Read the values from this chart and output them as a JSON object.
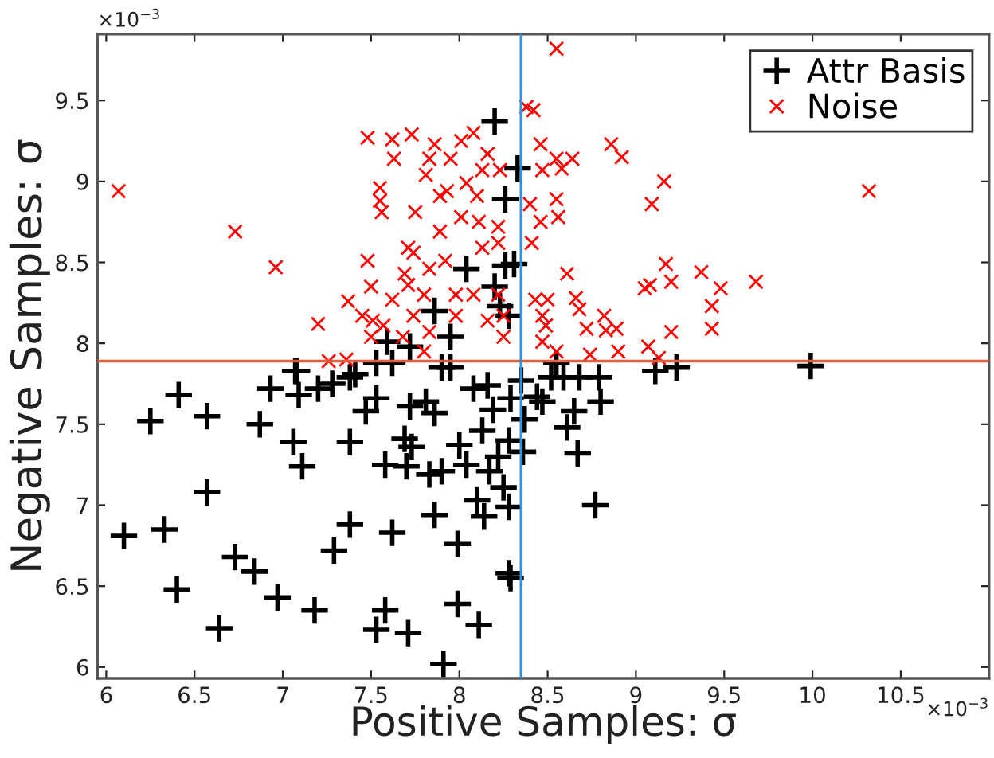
{
  "chart_data": {
    "type": "scatter",
    "xlabel": "Positive Samples: σ",
    "ylabel": "Negative Samples: σ",
    "xlim": [
      5.95,
      11
    ],
    "ylim": [
      5.93,
      9.91
    ],
    "xticks": [
      6,
      6.5,
      7,
      7.5,
      8,
      8.5,
      9,
      9.5,
      10,
      10.5
    ],
    "yticks": [
      6,
      6.5,
      7,
      7.5,
      8,
      8.5,
      9,
      9.5
    ],
    "grid": false,
    "legend": "top right",
    "annotations": [
      "×10$^{−3}$",
      "×10$^{−3}$"
    ],
    "ref_lines": [
      {
        "axis": "y",
        "value": 7.89,
        "color": "#e06040"
      },
      {
        "axis": "x",
        "value": 8.35,
        "color": "#3d8fd1"
      }
    ],
    "series": [
      {
        "name": "Attr Basis",
        "color": "#000000",
        "marker": "plus",
        "x": [
          6.1,
          6.25,
          6.33,
          6.41,
          6.4,
          6.57,
          6.57,
          6.64,
          6.73,
          6.84,
          6.87,
          6.93,
          6.97,
          7.07,
          7.09,
          7.06,
          7.11,
          7.18,
          7.2,
          7.28,
          7.29,
          7.38,
          7.38,
          7.38,
          7.47,
          7.53,
          7.53,
          7.58,
          7.58,
          7.62,
          7.62,
          7.7,
          7.71,
          7.72,
          7.69,
          7.73,
          7.81,
          7.83,
          7.86,
          7.86,
          7.91,
          7.9,
          7.99,
          7.99,
          8.0,
          8.11,
          8.1,
          8.14,
          8.04,
          8.08,
          7.9,
          7.95,
          9.99,
          9.11,
          9.23,
          8.77,
          8.67,
          8.61,
          8.65,
          8.8,
          8.79,
          8.68,
          8.59,
          8.52,
          8.44,
          8.47,
          8.28,
          8.29,
          8.28,
          8.25,
          8.36,
          8.37,
          8.35,
          8.17,
          8.22,
          8.28,
          8.29,
          8.16,
          8.19,
          8.13,
          8.55,
          8.2,
          8.33,
          8.26,
          8.31,
          8.26,
          8.2,
          8.28,
          8.23,
          8.04,
          7.86,
          7.95,
          7.59,
          7.72,
          7.08,
          7.41,
          7.53
        ],
        "values": [
          6.81,
          7.52,
          6.85,
          7.68,
          6.48,
          7.55,
          7.08,
          6.24,
          6.68,
          6.59,
          7.5,
          7.72,
          6.43,
          7.83,
          7.68,
          7.39,
          7.24,
          6.35,
          7.72,
          7.75,
          6.72,
          7.79,
          7.39,
          6.88,
          7.58,
          7.66,
          6.23,
          7.25,
          6.35,
          6.83,
          7.88,
          7.24,
          6.21,
          7.61,
          7.41,
          7.36,
          7.64,
          7.19,
          6.94,
          7.57,
          6.02,
          7.21,
          6.76,
          6.39,
          7.37,
          6.26,
          7.03,
          6.93,
          7.25,
          7.72,
          7.85,
          7.85,
          7.86,
          7.83,
          7.85,
          7.0,
          7.32,
          7.48,
          7.58,
          7.64,
          7.79,
          7.79,
          7.79,
          7.79,
          7.67,
          7.64,
          6.58,
          6.55,
          6.99,
          7.11,
          7.33,
          7.53,
          7.77,
          7.21,
          7.3,
          7.4,
          7.66,
          7.74,
          7.59,
          7.46,
          7.88,
          9.37,
          9.08,
          8.89,
          8.49,
          8.48,
          8.35,
          8.17,
          8.23,
          8.46,
          8.2,
          8.04,
          8.01,
          7.98,
          7.83,
          7.81,
          7.88
        ]
      },
      {
        "name": "Noise",
        "color": "#ff0000",
        "marker": "cross",
        "x": [
          6.07,
          6.73,
          6.96,
          7.2,
          7.37,
          7.26,
          7.36,
          7.48,
          7.62,
          7.63,
          7.73,
          7.55,
          7.55,
          7.56,
          7.48,
          7.5,
          7.45,
          7.51,
          7.57,
          7.62,
          7.69,
          7.71,
          7.75,
          7.83,
          7.81,
          7.86,
          7.89,
          7.92,
          7.95,
          7.93,
          8.01,
          8.08,
          8.04,
          8.1,
          8.11,
          8.01,
          7.98,
          8.08,
          8.16,
          7.8,
          7.74,
          7.71,
          7.83,
          7.68,
          7.5,
          7.8,
          8.22,
          8.16,
          8.23,
          7.89,
          7.74,
          7.83,
          7.98,
          8.25,
          8.55,
          8.38,
          8.42,
          8.46,
          8.55,
          8.64,
          8.47,
          8.58,
          8.86,
          8.92,
          9.16,
          9.09,
          10.32,
          8.55,
          8.56,
          8.4,
          8.46,
          8.41,
          8.61,
          9.17,
          9.2,
          9.37,
          9.48,
          9.68,
          9.05,
          9.08,
          8.66,
          8.68,
          9.43,
          9.43,
          9.2,
          8.43,
          8.5,
          8.47,
          8.49,
          8.72,
          8.82,
          8.89,
          8.83,
          8.47,
          8.55,
          8.74,
          8.9,
          9.07,
          9.13,
          8.13,
          8.22,
          8.13,
          8.22,
          8.25
        ],
        "values": [
          8.94,
          8.69,
          8.47,
          8.12,
          8.26,
          7.89,
          7.9,
          9.27,
          9.26,
          9.14,
          9.29,
          8.96,
          8.88,
          8.81,
          8.51,
          8.35,
          8.17,
          8.14,
          8.11,
          8.27,
          8.43,
          8.59,
          8.81,
          9.14,
          9.04,
          9.23,
          8.69,
          8.51,
          9.14,
          8.94,
          9.25,
          9.3,
          8.99,
          8.91,
          8.75,
          8.78,
          8.3,
          8.3,
          8.14,
          8.3,
          8.17,
          8.36,
          8.07,
          8.04,
          8.04,
          7.95,
          8.62,
          9.17,
          9.07,
          8.91,
          8.56,
          8.46,
          8.17,
          8.17,
          9.82,
          9.46,
          9.44,
          9.23,
          9.14,
          9.14,
          9.07,
          9.08,
          9.23,
          9.15,
          9.0,
          8.86,
          8.94,
          8.89,
          8.78,
          8.86,
          8.75,
          8.62,
          8.43,
          8.49,
          8.38,
          8.44,
          8.34,
          8.38,
          8.34,
          8.36,
          8.28,
          8.21,
          8.23,
          8.09,
          8.07,
          8.27,
          8.27,
          8.17,
          8.11,
          8.09,
          8.17,
          8.09,
          8.08,
          8.01,
          7.95,
          7.93,
          7.95,
          7.98,
          7.91,
          9.07,
          8.72,
          8.59,
          8.3,
          8.04
        ]
      }
    ]
  }
}
